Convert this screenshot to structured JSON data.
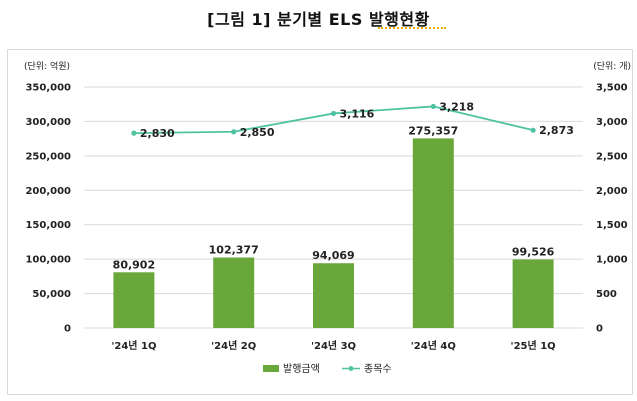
{
  "title": "[그림 1] 분기별 ELS 발행현황",
  "chart_data": {
    "type": "bar",
    "categories": [
      "'24년 1Q",
      "'24년 2Q",
      "'24년 3Q",
      "'24년 4Q",
      "'25년 1Q"
    ],
    "series": [
      {
        "name": "발행금액",
        "type": "bar",
        "axis": "left",
        "values": [
          80902,
          102377,
          94069,
          275357,
          99526
        ],
        "labels": [
          "80,902",
          "102,377",
          "94,069",
          "275,357",
          "99,526"
        ]
      },
      {
        "name": "종목수",
        "type": "line",
        "axis": "right",
        "values": [
          2830,
          2850,
          3116,
          3218,
          2873
        ],
        "labels": [
          "2,830",
          "2,850",
          "3,116",
          "3,218",
          "2,873"
        ]
      }
    ],
    "left_axis": {
      "unit_label": "(단위: 억원)",
      "ylim": [
        0,
        350000
      ],
      "ticks": [
        0,
        50000,
        100000,
        150000,
        200000,
        250000,
        300000,
        350000
      ],
      "tick_labels": [
        "0",
        "50,000",
        "100,000",
        "150,000",
        "200,000",
        "250,000",
        "300,000",
        "350,000"
      ]
    },
    "right_axis": {
      "unit_label": "(단위: 개)",
      "ylim": [
        0,
        3500
      ],
      "ticks": [
        0,
        500,
        1000,
        1500,
        2000,
        2500,
        3000,
        3500
      ],
      "tick_labels": [
        "0",
        "500",
        "1,000",
        "1,500",
        "2,000",
        "2,500",
        "3,000",
        "3,500"
      ]
    },
    "grid": true,
    "legend_position": "bottom",
    "colors": {
      "bar": "#6aa73b",
      "line": "#4fc3a1",
      "grid": "#d9d9d9",
      "text": "#222222"
    }
  }
}
